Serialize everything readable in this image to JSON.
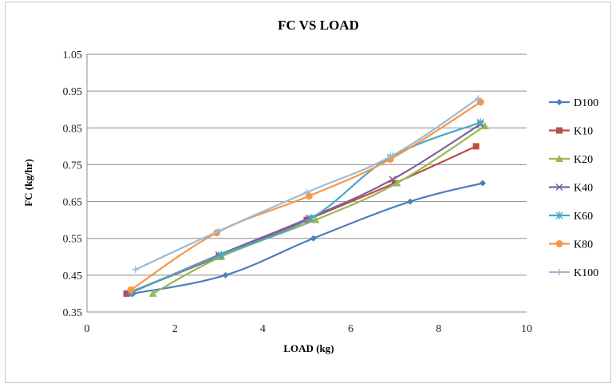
{
  "chart_data": {
    "type": "line",
    "title": "FC  VS  LOAD",
    "xlabel": "LOAD (kg)",
    "ylabel": "FC (kg/hr)",
    "xlim": [
      0,
      10
    ],
    "ylim": [
      0.35,
      1.05
    ],
    "xticks": [
      "0",
      "2",
      "4",
      "6",
      "8",
      "10"
    ],
    "yticks": [
      "0.35",
      "0.45",
      "0.55",
      "0.65",
      "0.75",
      "0.85",
      "0.95",
      "1.05"
    ],
    "grid": "horizontal",
    "legend_position": "right",
    "series": [
      {
        "name": "D100",
        "color": "#4a7ebb",
        "marker": "diamond",
        "x": [
          1.05,
          3.15,
          5.15,
          7.35,
          9.0
        ],
        "y": [
          0.4,
          0.45,
          0.55,
          0.65,
          0.7
        ]
      },
      {
        "name": "K10",
        "color": "#be4b48",
        "marker": "square",
        "x": [
          0.9,
          3.0,
          5.0,
          7.0,
          8.85
        ],
        "y": [
          0.4,
          0.5,
          0.6,
          0.7,
          0.8
        ]
      },
      {
        "name": "K20",
        "color": "#98b954",
        "marker": "triangle",
        "x": [
          1.5,
          3.05,
          5.2,
          7.05,
          9.05
        ],
        "y": [
          0.4,
          0.5,
          0.6,
          0.7,
          0.855
        ]
      },
      {
        "name": "K40",
        "color": "#7d60a0",
        "marker": "x",
        "x": [
          0.95,
          3.0,
          5.05,
          6.95,
          8.95
        ],
        "y": [
          0.4,
          0.505,
          0.605,
          0.71,
          0.86
        ]
      },
      {
        "name": "K60",
        "color": "#46aac5",
        "marker": "star",
        "x": [
          1.0,
          3.05,
          5.1,
          6.9,
          8.95
        ],
        "y": [
          0.405,
          0.505,
          0.605,
          0.77,
          0.865
        ]
      },
      {
        "name": "K80",
        "color": "#f79646",
        "marker": "circle",
        "x": [
          1.0,
          2.95,
          5.05,
          6.9,
          8.95
        ],
        "y": [
          0.41,
          0.565,
          0.665,
          0.765,
          0.92
        ]
      },
      {
        "name": "K100",
        "color": "#9bbbd9",
        "marker": "plus",
        "x": [
          1.1,
          3.0,
          5.0,
          6.95,
          8.9
        ],
        "y": [
          0.465,
          0.57,
          0.675,
          0.775,
          0.93
        ]
      }
    ]
  }
}
